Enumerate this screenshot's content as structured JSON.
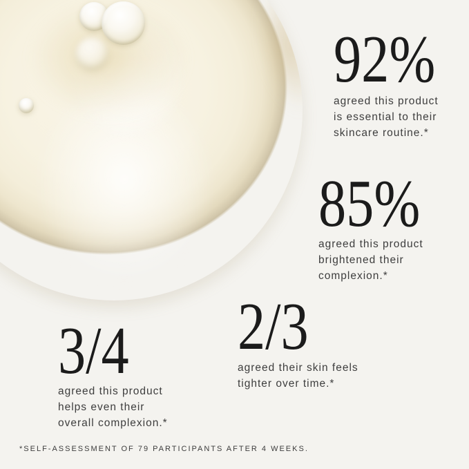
{
  "meta": {
    "kind": "skincare-product-claims-graphic"
  },
  "colors": {
    "page_background": "#f4f3ef",
    "swatch_base": "#f7f2e1",
    "swatch_rim": "#cdc2a6",
    "number_text": "#1b1b1b",
    "caption_text": "#3d3d3d",
    "footnote_text": "#3c3c3c"
  },
  "swatch": {
    "description": "pale golden serum smear with air bubbles"
  },
  "stats": [
    {
      "value": "92%",
      "lines": [
        "agreed this product",
        "is essential to their",
        "skincare routine.*"
      ]
    },
    {
      "value": "85%",
      "lines": [
        "agreed this product",
        "brightened their",
        "complexion.*"
      ]
    },
    {
      "value": "2/3",
      "lines": [
        "agreed their skin feels",
        "tighter over time.*"
      ]
    },
    {
      "value": "3/4",
      "lines": [
        "agreed this product",
        "helps even their",
        "overall complexion.*"
      ]
    }
  ],
  "footnote": "*SELF-ASSESSMENT OF 79 PARTICIPANTS AFTER 4 WEEKS."
}
